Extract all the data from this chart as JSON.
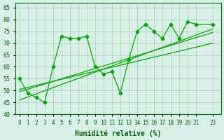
{
  "x": [
    0,
    1,
    2,
    3,
    4,
    5,
    6,
    7,
    8,
    9,
    10,
    11,
    12,
    13,
    14,
    15,
    16,
    17,
    18,
    19,
    20,
    21,
    23
  ],
  "y_main": [
    55,
    49,
    47,
    45,
    60,
    73,
    72,
    72,
    73,
    60,
    57,
    58,
    49,
    63,
    75,
    78,
    75,
    72,
    78,
    72,
    79,
    78,
    78
  ],
  "xlim": [
    -0.5,
    24
  ],
  "ylim": [
    40,
    87
  ],
  "yticks": [
    40,
    45,
    50,
    55,
    60,
    65,
    70,
    75,
    80,
    85
  ],
  "xtick_positions": [
    0,
    1,
    2,
    3,
    4,
    5,
    6,
    7,
    8,
    9,
    10,
    11,
    12,
    13,
    14,
    15,
    16,
    17,
    18,
    19,
    20,
    21,
    23
  ],
  "xtick_labels": [
    "0",
    "1",
    "2",
    "3",
    "4",
    "5",
    "6",
    "7",
    "8",
    "9",
    "10",
    "11",
    "12",
    "13",
    "14",
    "15",
    "16",
    "17",
    "18",
    "19",
    "20",
    "21",
    "23"
  ],
  "xlabel": "Humidité relative (%)",
  "line_color": "#00aa00",
  "bg_color": "#d8f0e8",
  "grid_color": "#aaccaa",
  "label_color": "#006600",
  "reg_line1_x": [
    0,
    23
  ],
  "reg_line1_y": [
    49.5,
    74.5
  ],
  "reg_line2_x": [
    0,
    23
  ],
  "reg_line2_y": [
    46.0,
    76.0
  ],
  "reg_line3_x": [
    0,
    23
  ],
  "reg_line3_y": [
    50.5,
    70.0
  ]
}
